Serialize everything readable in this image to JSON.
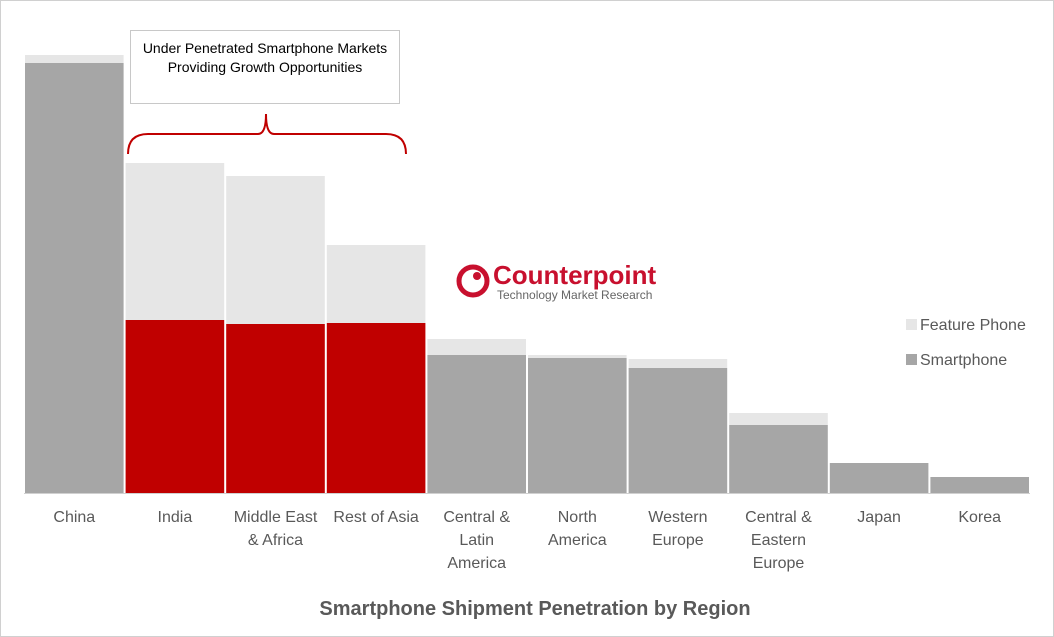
{
  "chart_data": {
    "type": "stacked_bar",
    "title": "Smartphone Shipment Penetration by Region",
    "annotation": "Under Penetrated Smartphone Markets Providing Growth Opportunities",
    "logo": {
      "name": "Counterpoint",
      "tagline": "Technology Market Research"
    },
    "categories": [
      "China",
      "India",
      "Middle East & Africa",
      "Rest of Asia",
      "Central & Latin America",
      "North America",
      "Western Europe",
      "Central & Eastern Europe",
      "Japan",
      "Korea"
    ],
    "ylim": [
      0,
      450
    ],
    "legend": "right",
    "series": [
      {
        "name": "Smartphone",
        "color": "#a6a6a6",
        "colors": [
          "#a6a6a6",
          "#c00000",
          "#c00000",
          "#c00000",
          "#a6a6a6",
          "#a6a6a6",
          "#a6a6a6",
          "#a6a6a6",
          "#a6a6a6",
          "#a6a6a6"
        ],
        "values": [
          430,
          173,
          169,
          170,
          138,
          135,
          125,
          68,
          30,
          16
        ]
      },
      {
        "name": "Feature Phone",
        "color": "#e6e6e6",
        "values": [
          8,
          157,
          148,
          78,
          16,
          3,
          9,
          12,
          0,
          0
        ]
      }
    ]
  }
}
